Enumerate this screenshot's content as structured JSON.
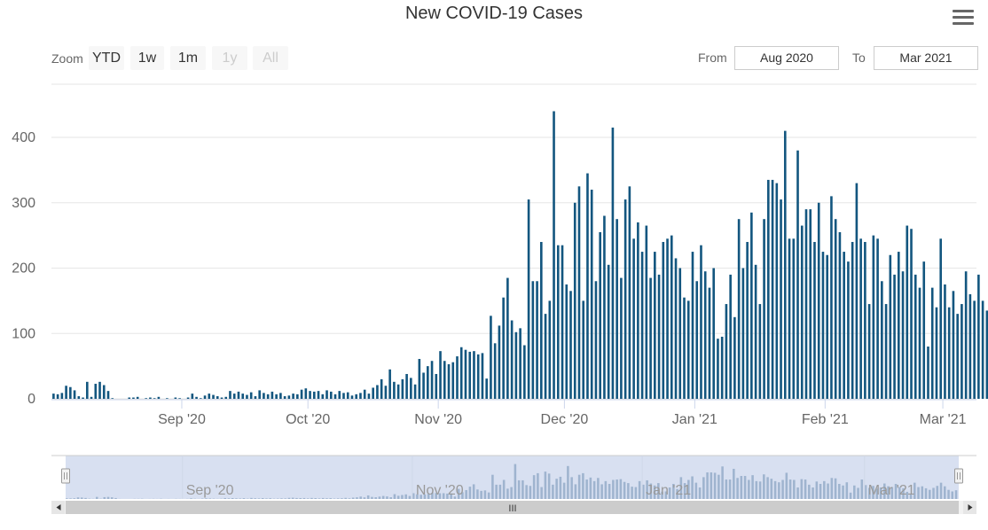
{
  "chart_data": {
    "type": "bar",
    "title": "New COVID-19 Cases",
    "xlabel": "",
    "ylabel": "",
    "ylim": [
      0,
      480
    ],
    "y_ticks": [
      "0",
      "100",
      "200",
      "300",
      "400"
    ],
    "x_ticks": [
      "Sep '20",
      "Oct '20",
      "Nov '20",
      "Dec '20",
      "Jan '21",
      "Feb '21",
      "Mar '21"
    ],
    "navigator_ticks": [
      "Sep '20",
      "Nov '20",
      "Jan '21",
      "Mar '21"
    ],
    "start_date": "2020-08-01",
    "end_date": "2021-03-08",
    "color": "#13567f",
    "values": [
      8,
      7,
      9,
      20,
      18,
      13,
      4,
      2,
      26,
      3,
      23,
      26,
      21,
      12,
      1,
      0,
      0,
      0,
      2,
      2,
      3,
      0,
      1,
      2,
      1,
      3,
      0,
      1,
      0,
      2,
      1,
      0,
      2,
      8,
      3,
      1,
      5,
      8,
      6,
      4,
      2,
      3,
      12,
      8,
      11,
      8,
      6,
      10,
      4,
      13,
      9,
      7,
      11,
      7,
      9,
      4,
      5,
      8,
      7,
      14,
      16,
      12,
      11,
      12,
      7,
      13,
      11,
      7,
      12,
      9,
      10,
      5,
      7,
      9,
      14,
      8,
      17,
      21,
      30,
      20,
      45,
      26,
      22,
      30,
      38,
      32,
      22,
      61,
      40,
      50,
      58,
      38,
      73,
      58,
      53,
      56,
      65,
      79,
      75,
      72,
      73,
      68,
      70,
      31,
      127,
      85,
      112,
      155,
      185,
      120,
      102,
      108,
      82,
      305,
      180,
      180,
      240,
      130,
      150,
      440,
      235,
      235,
      175,
      165,
      300,
      325,
      150,
      345,
      320,
      180,
      255,
      280,
      205,
      415,
      275,
      185,
      305,
      325,
      245,
      270,
      225,
      265,
      185,
      225,
      190,
      240,
      245,
      250,
      215,
      200,
      155,
      150,
      225,
      180,
      235,
      195,
      170,
      200,
      92,
      95,
      145,
      190,
      125,
      275,
      200,
      240,
      285,
      205,
      145,
      275,
      335,
      335,
      330,
      305,
      410,
      245,
      245,
      380,
      265,
      290,
      290,
      240,
      300,
      225,
      220,
      310,
      275,
      255,
      225,
      210,
      240,
      330,
      245,
      240,
      145,
      250,
      245,
      180,
      145,
      220,
      190,
      225,
      195,
      265,
      260,
      190,
      170,
      210,
      80,
      170,
      140,
      245,
      175,
      140,
      165,
      130,
      145,
      195,
      160,
      150,
      190,
      150,
      135,
      90,
      55,
      205,
      150,
      160,
      135,
      115,
      140,
      165,
      205,
      160,
      115,
      95,
      110
    ]
  },
  "zoom": {
    "label": "Zoom",
    "buttons": [
      {
        "label": "YTD",
        "disabled": false
      },
      {
        "label": "1w",
        "disabled": false
      },
      {
        "label": "1m",
        "disabled": false
      },
      {
        "label": "1y",
        "disabled": true
      },
      {
        "label": "All",
        "disabled": true
      }
    ]
  },
  "range": {
    "from_label": "From",
    "from_value": "Aug 2020",
    "to_label": "To",
    "to_value": "Mar 2021"
  },
  "navigator": {
    "scroll_grip": "III"
  },
  "colors": {
    "bar": "#13567f",
    "navigator_mask": "#d8e0f1",
    "navigator_bar": "#9fb4cf",
    "grid": "#e6e6e6"
  }
}
